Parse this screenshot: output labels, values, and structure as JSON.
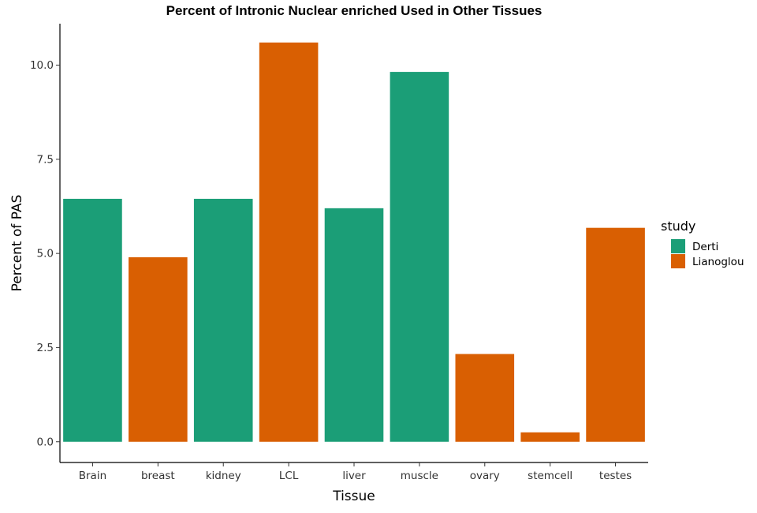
{
  "chart_data": {
    "type": "bar",
    "title": "Percent of Intronic Nuclear enriched Used in Other Tissues",
    "xlabel": "Tissue",
    "ylabel": "Percent of PAS",
    "ylim": [
      -0.55,
      11.1
    ],
    "yticks": [
      "0.0",
      "2.5",
      "5.0",
      "7.5",
      "10.0"
    ],
    "categories": [
      "Brain",
      "breast",
      "kidney",
      "LCL",
      "liver",
      "muscle",
      "ovary",
      "stemcell",
      "testes"
    ],
    "values": [
      6.45,
      4.9,
      6.45,
      10.6,
      6.2,
      9.82,
      2.33,
      0.25,
      5.68
    ],
    "study": [
      "Derti",
      "Lianoglou",
      "Derti",
      "Lianoglou",
      "Derti",
      "Derti",
      "Lianoglou",
      "Lianoglou",
      "Lianoglou"
    ],
    "grid": false,
    "legend": {
      "title": "study",
      "position": "right",
      "entries": [
        {
          "label": "Derti",
          "color": "#1b9e77"
        },
        {
          "label": "Lianoglou",
          "color": "#d95f02"
        }
      ]
    }
  }
}
